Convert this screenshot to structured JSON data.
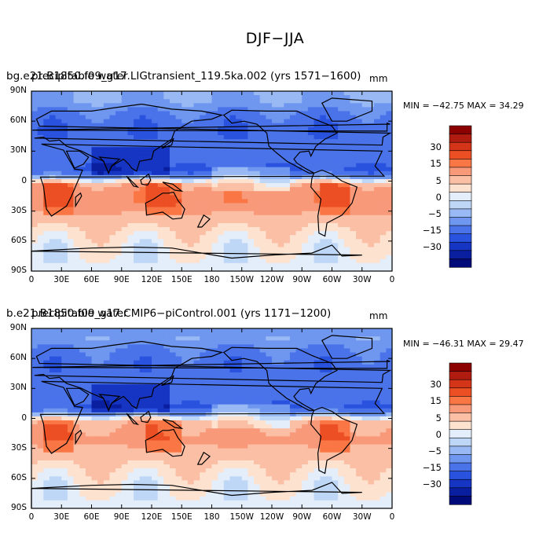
{
  "figure": {
    "title": "DJF−JJA"
  },
  "panels": [
    {
      "title_case": "bg.e21.B1850.f09_g17.LIGtransient_119.5ka.002  (yrs 1571−1600)",
      "title_overlay": "precipitable water",
      "units": "mm",
      "minmax": "MIN = −42.75  MAX =  34.29",
      "colorbar_labels": [
        "30",
        "15",
        "5",
        "0",
        "−5",
        "−15",
        "−30"
      ]
    },
    {
      "title_case": "b.e21.B1850.f09_g17.CMIP6−piControl.001  (yrs 1171−1200)",
      "title_overlay": "precipitable water",
      "units": "mm",
      "minmax": "MIN = −46.31  MAX =  29.47",
      "colorbar_labels": [
        "30",
        "15",
        "5",
        "0",
        "−5",
        "−15",
        "−30"
      ]
    }
  ],
  "axes": {
    "x_ticks": [
      "0",
      "30E",
      "60E",
      "90E",
      "120E",
      "150E",
      "180",
      "150W",
      "120W",
      "90W",
      "60W",
      "30W",
      "0"
    ],
    "y_ticks": [
      "90N",
      "60N",
      "30N",
      "0",
      "30S",
      "60S",
      "90S"
    ]
  },
  "chart_data": [
    {
      "type": "heatmap",
      "title": "DJF−JJA",
      "subtitle": "bg.e21.B1850.f09_g17.LIGtransient_119.5ka.002  (yrs 1571−1600)",
      "variable": "precipitable water",
      "units": "mm",
      "min": -42.75,
      "max": 34.29,
      "xlim": [
        0,
        360
      ],
      "ylim": [
        -90,
        90
      ],
      "colorbar_levels": [
        -35,
        -30,
        -25,
        -20,
        -15,
        -10,
        -5,
        -2,
        0,
        2,
        5,
        10,
        15,
        20,
        25,
        30,
        35
      ],
      "zonal_pattern": [
        {
          "lat": 80,
          "value": -5
        },
        {
          "lat": 65,
          "value": -12
        },
        {
          "lat": 50,
          "value": -14
        },
        {
          "lat": 35,
          "value": -13
        },
        {
          "lat": 22,
          "value": -12
        },
        {
          "lat": 10,
          "value": -16
        },
        {
          "lat": 3,
          "value": -3
        },
        {
          "lat": -5,
          "value": 12
        },
        {
          "lat": -20,
          "value": 14
        },
        {
          "lat": -35,
          "value": 9
        },
        {
          "lat": -50,
          "value": 4
        },
        {
          "lat": -65,
          "value": 2
        },
        {
          "lat": -80,
          "value": 1
        }
      ]
    },
    {
      "type": "heatmap",
      "title": "DJF−JJA",
      "subtitle": "b.e21.B1850.f09_g17.CMIP6−piControl.001  (yrs 1171−1200)",
      "variable": "precipitable water",
      "units": "mm",
      "min": -46.31,
      "max": 29.47,
      "xlim": [
        0,
        360
      ],
      "ylim": [
        -90,
        90
      ],
      "colorbar_levels": [
        -35,
        -30,
        -25,
        -20,
        -15,
        -10,
        -5,
        -2,
        0,
        2,
        5,
        10,
        15,
        20,
        25,
        30,
        35
      ],
      "zonal_pattern": [
        {
          "lat": 80,
          "value": -6
        },
        {
          "lat": 65,
          "value": -12
        },
        {
          "lat": 50,
          "value": -13
        },
        {
          "lat": 35,
          "value": -12
        },
        {
          "lat": 22,
          "value": -11
        },
        {
          "lat": 10,
          "value": -16
        },
        {
          "lat": 3,
          "value": -2
        },
        {
          "lat": -5,
          "value": 10
        },
        {
          "lat": -20,
          "value": 12
        },
        {
          "lat": -35,
          "value": 8
        },
        {
          "lat": -50,
          "value": 4
        },
        {
          "lat": -65,
          "value": 2
        },
        {
          "lat": -80,
          "value": 1
        }
      ]
    }
  ],
  "colors": {
    "colorbar": [
      "#8b0000",
      "#b01c10",
      "#d43418",
      "#ec4f24",
      "#fa7644",
      "#f8997a",
      "#fbbfa5",
      "#fde2d0",
      "#e3eefa",
      "#bfd7f7",
      "#98b9f3",
      "#6f97ef",
      "#4a73ea",
      "#2953de",
      "#1635c2",
      "#0a1fa0",
      "#000a78"
    ]
  }
}
